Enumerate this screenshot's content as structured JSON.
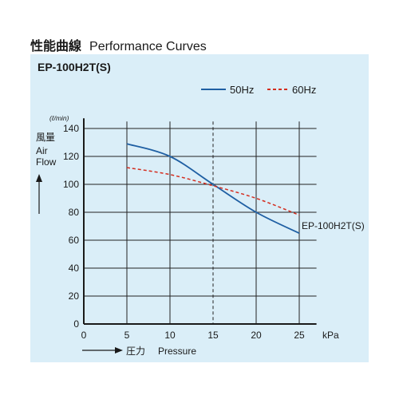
{
  "heading": {
    "title_jp": "性能曲線",
    "title_en": "Performance Curves"
  },
  "model": "EP-100H2T(S)",
  "colors": {
    "panel": "#daeef8",
    "hz50": "#1f5fa3",
    "hz60": "#d42d1f",
    "axis": "#1a1a1a"
  },
  "chart_data": {
    "type": "line",
    "title": "EP-100H2T(S)",
    "y_unit": "(ℓ/min)",
    "ylabel_jp": "風量",
    "ylabel_en_1": "Air",
    "ylabel_en_2": "Flow",
    "xlabel_jp": "圧力",
    "xlabel_en": "Pressure",
    "x_unit": "kPa",
    "curve_label": "EP-100H2T(S)",
    "xlim": [
      0,
      27
    ],
    "ylim": [
      0,
      145
    ],
    "x_ticks": [
      0,
      5,
      10,
      15,
      20,
      25
    ],
    "y_ticks": [
      0,
      20,
      40,
      60,
      80,
      100,
      120,
      140
    ],
    "grid": true,
    "reference_line_x": 15,
    "legend_position": "top-right",
    "series": [
      {
        "name": "50Hz",
        "style": "solid",
        "x": [
          5,
          10,
          15,
          20,
          25
        ],
        "y": [
          129,
          120,
          100,
          80,
          65
        ]
      },
      {
        "name": "60Hz",
        "style": "dashed",
        "x": [
          5,
          10,
          15,
          20,
          25
        ],
        "y": [
          112,
          107,
          99,
          90,
          78
        ]
      }
    ]
  }
}
